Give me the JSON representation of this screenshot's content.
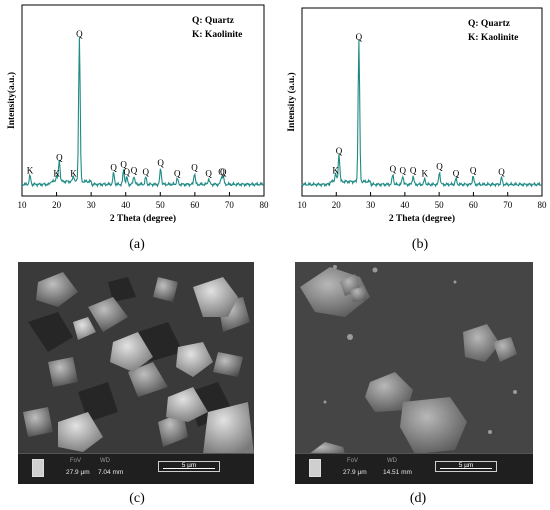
{
  "chart_data": [
    {
      "type": "line",
      "panel": "(a)",
      "xlabel": "2 Theta (degree)",
      "ylabel": "Intensity(a.u.)",
      "xlim": [
        10,
        80
      ],
      "xticks": [
        10,
        20,
        30,
        40,
        50,
        60,
        70,
        80
      ],
      "color": "#1e8a84",
      "legend": [
        "Q: Quartz",
        "K: Kaolinite"
      ],
      "peaks": [
        {
          "x": 12.3,
          "y": 0.06,
          "label": "K"
        },
        {
          "x": 20.8,
          "y": 0.15,
          "label": "Q"
        },
        {
          "x": 20.0,
          "y": 0.04,
          "label": "K"
        },
        {
          "x": 24.9,
          "y": 0.04,
          "label": "K"
        },
        {
          "x": 26.6,
          "y": 1.0,
          "label": "Q"
        },
        {
          "x": 36.5,
          "y": 0.08,
          "label": "Q"
        },
        {
          "x": 39.4,
          "y": 0.1,
          "label": "Q"
        },
        {
          "x": 40.3,
          "y": 0.05,
          "label": "Q"
        },
        {
          "x": 42.4,
          "y": 0.06,
          "label": "Q"
        },
        {
          "x": 45.8,
          "y": 0.05,
          "label": "Q"
        },
        {
          "x": 50.1,
          "y": 0.11,
          "label": "Q"
        },
        {
          "x": 54.9,
          "y": 0.04,
          "label": "Q"
        },
        {
          "x": 59.9,
          "y": 0.08,
          "label": "Q"
        },
        {
          "x": 64.0,
          "y": 0.04,
          "label": "Q"
        },
        {
          "x": 67.7,
          "y": 0.05,
          "label": "Q"
        },
        {
          "x": 68.2,
          "y": 0.05,
          "label": "Q"
        }
      ]
    },
    {
      "type": "line",
      "panel": "(b)",
      "xlabel": "2 Theta (degree)",
      "ylabel": "Intensity (a.u.)",
      "xlim": [
        10,
        80
      ],
      "xticks": [
        10,
        20,
        30,
        40,
        50,
        60,
        70,
        80
      ],
      "color": "#1e8a84",
      "legend": [
        "Q: Quartz",
        "K: Kaolinite"
      ],
      "peaks": [
        {
          "x": 19.8,
          "y": 0.06,
          "label": "K"
        },
        {
          "x": 20.8,
          "y": 0.2,
          "label": "Q"
        },
        {
          "x": 26.6,
          "y": 1.0,
          "label": "Q"
        },
        {
          "x": 36.5,
          "y": 0.07,
          "label": "Q"
        },
        {
          "x": 39.4,
          "y": 0.06,
          "label": "Q"
        },
        {
          "x": 42.4,
          "y": 0.06,
          "label": "Q"
        },
        {
          "x": 45.8,
          "y": 0.04,
          "label": "K"
        },
        {
          "x": 50.1,
          "y": 0.09,
          "label": "Q"
        },
        {
          "x": 54.9,
          "y": 0.04,
          "label": "Q"
        },
        {
          "x": 59.9,
          "y": 0.06,
          "label": "Q"
        },
        {
          "x": 68.2,
          "y": 0.05,
          "label": "Q"
        }
      ]
    }
  ],
  "captions": {
    "a": "(a)",
    "b": "(b)",
    "c": "(c)",
    "d": "(d)"
  },
  "sem": [
    {
      "fov_label": "FoV",
      "fov_value": "27.9 µm",
      "wd_label": "WD",
      "wd_value": "7.04 mm",
      "scale": "5 µm"
    },
    {
      "fov_label": "FoV",
      "fov_value": "27.9 µm",
      "wd_label": "WD",
      "wd_value": "14.51 mm",
      "scale": "5 µm"
    }
  ]
}
